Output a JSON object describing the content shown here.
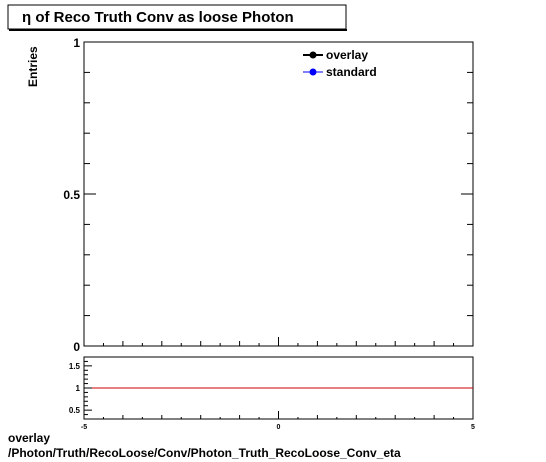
{
  "chart_data": [
    {
      "type": "line",
      "title": "η of Reco Truth Conv as loose Photon",
      "ylabel": "Entries",
      "xlim": [
        -5,
        5
      ],
      "ylim": [
        0,
        1
      ],
      "y_tick_labels": [
        "0",
        "0.5",
        "1"
      ],
      "legend_position": "top-right",
      "series": [
        {
          "name": "overlay",
          "color": "#000000",
          "marker": "circle",
          "x": [],
          "y": []
        },
        {
          "name": "standard",
          "color": "#0000ff",
          "marker": "circle",
          "x": [],
          "y": []
        }
      ]
    },
    {
      "type": "line",
      "xlim": [
        -5,
        5
      ],
      "ylim": [
        0.3,
        1.7
      ],
      "x_tick_labels": [
        "-5",
        "0",
        "5"
      ],
      "y_tick_labels": [
        "0.5",
        "1",
        "1.5"
      ],
      "reference_line": {
        "y": 1,
        "color": "#cc0000"
      },
      "series": []
    }
  ],
  "footer": {
    "line1": "overlay",
    "line2": "/Photon/Truth/RecoLoose/Conv/Photon_Truth_RecoLoose_Conv_eta"
  }
}
